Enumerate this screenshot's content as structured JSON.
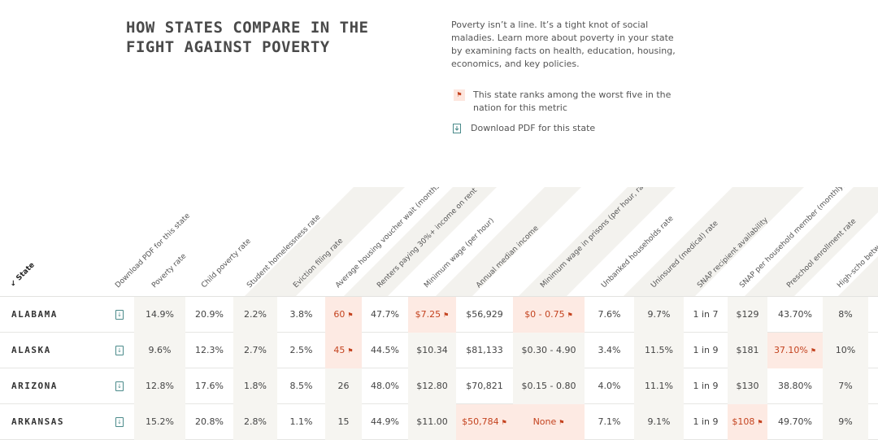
{
  "header": {
    "title": "HOW STATES COMPARE IN THE FIGHT AGAINST POVERTY",
    "intro": "Poverty isn’t a line. It’s a tight knot of social maladies. Learn more about poverty in your state by examining facts on health, education, housing, economics, and key policies."
  },
  "legend": {
    "worst_five": "This state ranks among the worst five in the nation for this metric",
    "download_pdf": "Download PDF for this state",
    "flag_icon": "flag-icon",
    "pdf_icon": "download-pdf-icon"
  },
  "colors": {
    "worst_bg": "#fdeae3",
    "worst_text": "#c4431f",
    "shade": "#f6f5f1",
    "pdf_icon": "#4a8a8a"
  },
  "table": {
    "sort_label": "State",
    "columns": [
      "Download PDF for this state",
      "Poverty rate",
      "Child poverty rate",
      "Student homelessness rate",
      "Eviction filing rate",
      "Average housing voucher wait (months)",
      "Renters paying 30%+ income on rent",
      "Minimum wage (per hour)",
      "Annual median income",
      "Minimum wage in prisons (per hour, range)",
      "Unbanked households rate",
      "Uninsured (medical) rate",
      "SNAP recipient availability",
      "SNAP per household member (monthly)",
      "Preschool enrollment rate",
      "High-scho between students"
    ],
    "rows": [
      {
        "state": "ALABAMA",
        "values": [
          "14.9%",
          "20.9%",
          "2.2%",
          "3.8%",
          "60",
          "47.7%",
          "$7.25",
          "$56,929",
          "$0 - 0.75",
          "7.6%",
          "9.7%",
          "1 in 7",
          "$129",
          "43.70%",
          "8%"
        ]
      },
      {
        "state": "ALASKA",
        "values": [
          "9.6%",
          "12.3%",
          "2.7%",
          "2.5%",
          "45",
          "44.5%",
          "$10.34",
          "$81,133",
          "$0.30 - 4.90",
          "3.4%",
          "11.5%",
          "1 in 9",
          "$181",
          "37.10%",
          "10%"
        ]
      },
      {
        "state": "ARIZONA",
        "values": [
          "12.8%",
          "17.6%",
          "1.8%",
          "8.5%",
          "26",
          "48.0%",
          "$12.80",
          "$70,821",
          "$0.15 - 0.80",
          "4.0%",
          "11.1%",
          "1 in 9",
          "$130",
          "38.80%",
          "7%"
        ]
      },
      {
        "state": "ARKANSAS",
        "values": [
          "15.2%",
          "20.8%",
          "2.8%",
          "1.1%",
          "15",
          "44.9%",
          "$11.00",
          "$50,784",
          "None",
          "7.1%",
          "9.1%",
          "1 in 9",
          "$108",
          "49.70%",
          "9%"
        ]
      }
    ],
    "worst": [
      [
        false,
        false,
        false,
        false,
        true,
        false,
        true,
        false,
        true,
        false,
        false,
        false,
        false,
        false,
        false
      ],
      [
        false,
        false,
        false,
        false,
        true,
        false,
        false,
        false,
        false,
        false,
        false,
        false,
        false,
        true,
        false
      ],
      [
        false,
        false,
        false,
        false,
        false,
        false,
        false,
        false,
        false,
        false,
        false,
        false,
        false,
        false,
        false
      ],
      [
        false,
        false,
        false,
        false,
        false,
        false,
        false,
        true,
        true,
        false,
        false,
        false,
        true,
        false,
        false
      ]
    ]
  }
}
